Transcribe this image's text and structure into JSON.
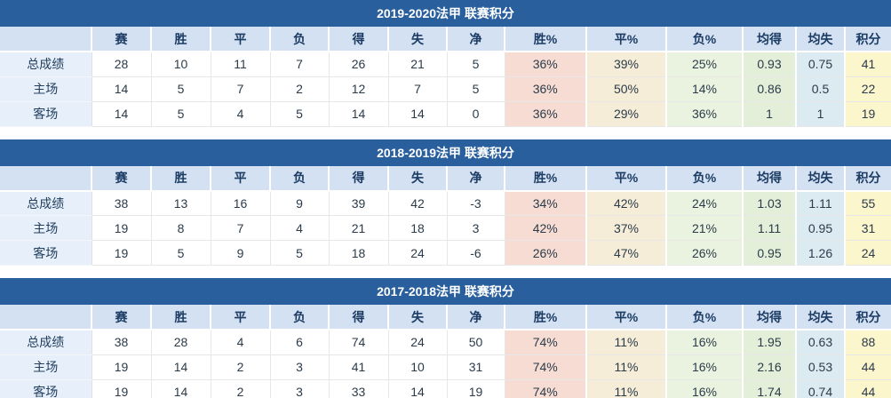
{
  "colors": {
    "title_bar_bg": "#2a5f9e",
    "title_text": "#ffffff",
    "header_bg": "#d3e1f2",
    "header_text": "#1c3c64",
    "row_label_bg": "#e7effa",
    "cell_bg": "#ffffff",
    "cell_text": "#2b3b4a",
    "win_pct_bg": "#f6dcd3",
    "draw_pct_bg": "#f5edd7",
    "loss_pct_bg": "#eaf3df",
    "avg_goals_for_bg": "#e3efd9",
    "avg_goals_against_bg": "#dcebf2",
    "points_bg": "#fcf6cd",
    "grid_border": "#e7e7e7"
  },
  "columns": [
    "",
    "赛",
    "胜",
    "平",
    "负",
    "得",
    "失",
    "净",
    "胜%",
    "平%",
    "负%",
    "均得",
    "均失",
    "积分"
  ],
  "tables": [
    {
      "title": "2019-2020法甲 联赛积分",
      "rows": [
        {
          "label": "总成绩",
          "values": [
            "28",
            "10",
            "11",
            "7",
            "26",
            "21",
            "5",
            "36%",
            "39%",
            "25%",
            "0.93",
            "0.75",
            "41"
          ]
        },
        {
          "label": "主场",
          "values": [
            "14",
            "5",
            "7",
            "2",
            "12",
            "7",
            "5",
            "36%",
            "50%",
            "14%",
            "0.86",
            "0.5",
            "22"
          ]
        },
        {
          "label": "客场",
          "values": [
            "14",
            "5",
            "4",
            "5",
            "14",
            "14",
            "0",
            "36%",
            "29%",
            "36%",
            "1",
            "1",
            "19"
          ]
        }
      ]
    },
    {
      "title": "2018-2019法甲 联赛积分",
      "rows": [
        {
          "label": "总成绩",
          "values": [
            "38",
            "13",
            "16",
            "9",
            "39",
            "42",
            "-3",
            "34%",
            "42%",
            "24%",
            "1.03",
            "1.11",
            "55"
          ]
        },
        {
          "label": "主场",
          "values": [
            "19",
            "8",
            "7",
            "4",
            "21",
            "18",
            "3",
            "42%",
            "37%",
            "21%",
            "1.11",
            "0.95",
            "31"
          ]
        },
        {
          "label": "客场",
          "values": [
            "19",
            "5",
            "9",
            "5",
            "18",
            "24",
            "-6",
            "26%",
            "47%",
            "26%",
            "0.95",
            "1.26",
            "24"
          ]
        }
      ]
    },
    {
      "title": "2017-2018法甲 联赛积分",
      "rows": [
        {
          "label": "总成绩",
          "values": [
            "38",
            "28",
            "4",
            "6",
            "74",
            "24",
            "50",
            "74%",
            "11%",
            "16%",
            "1.95",
            "0.63",
            "88"
          ]
        },
        {
          "label": "主场",
          "values": [
            "19",
            "14",
            "2",
            "3",
            "41",
            "10",
            "31",
            "74%",
            "11%",
            "16%",
            "2.16",
            "0.53",
            "44"
          ]
        },
        {
          "label": "客场",
          "values": [
            "19",
            "14",
            "2",
            "3",
            "33",
            "14",
            "19",
            "74%",
            "11%",
            "16%",
            "1.74",
            "0.74",
            "44"
          ]
        }
      ]
    }
  ]
}
